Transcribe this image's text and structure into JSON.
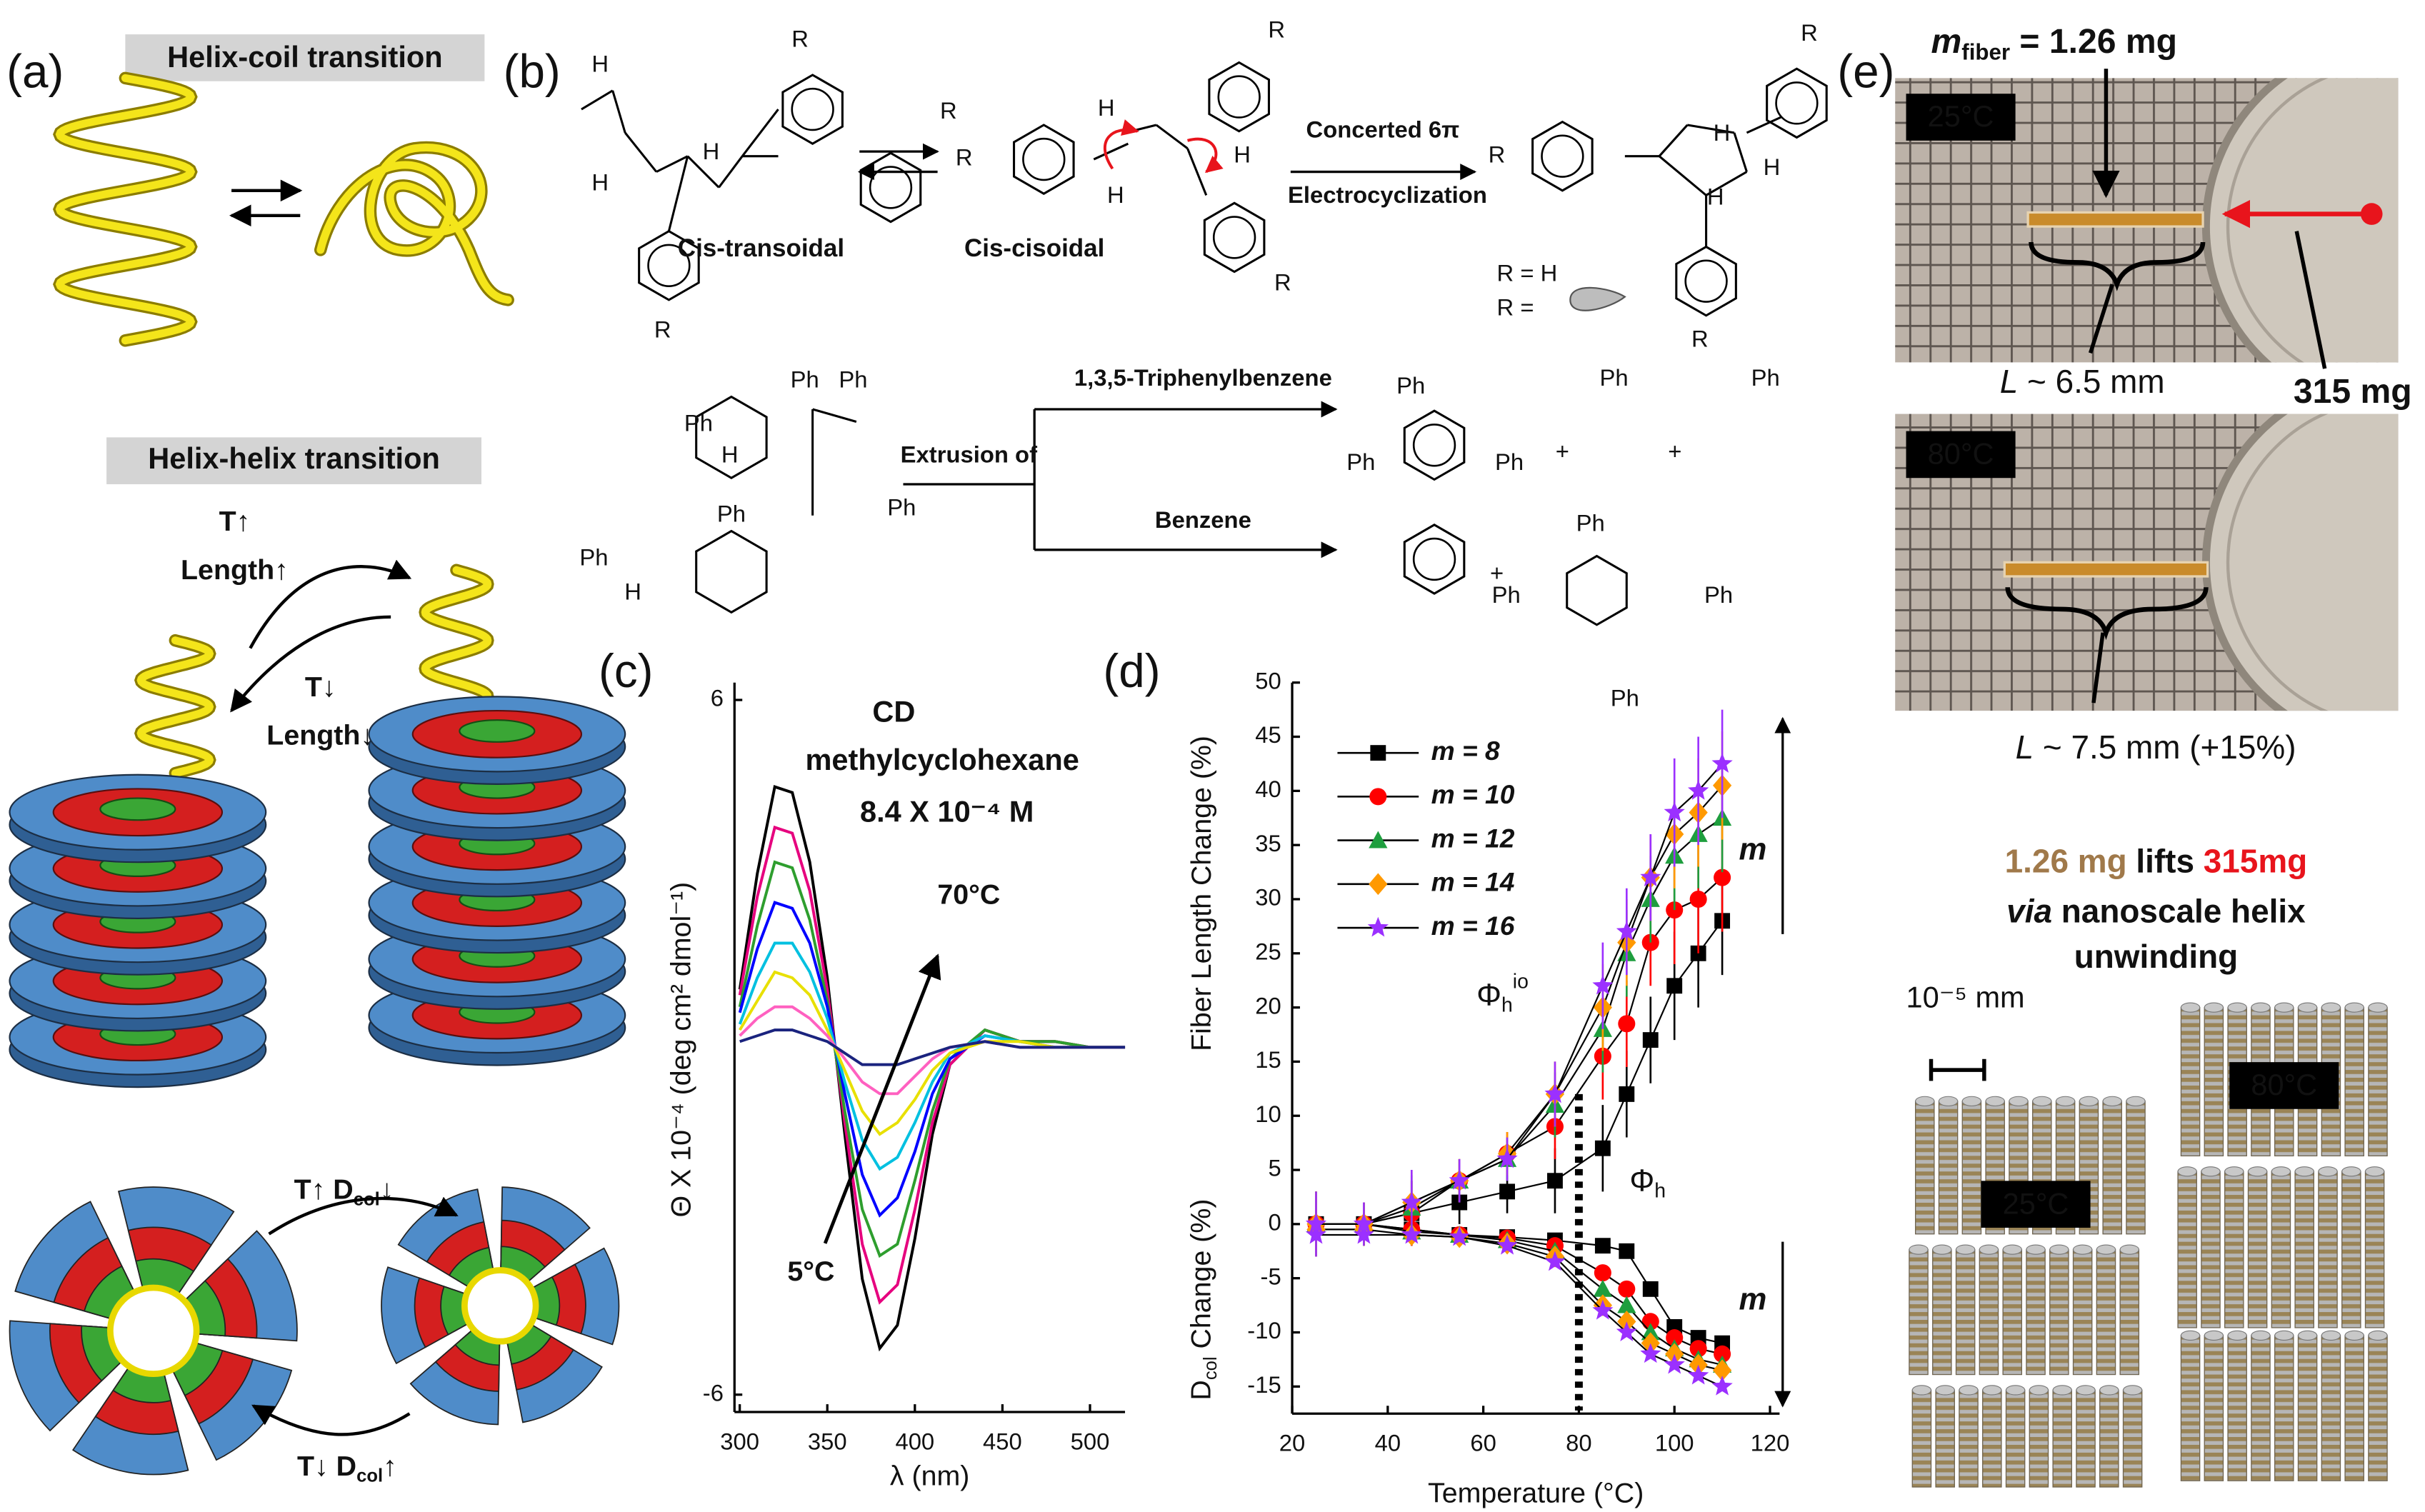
{
  "panel_a": {
    "label": "(a)",
    "helix_coil": "Helix-coil transition",
    "helix_helix": "Helix-helix transition",
    "t_up": "T↑",
    "length_up": "Length↑",
    "t_down": "T↓",
    "length_down": "Length↓",
    "dcol_down": [
      "T↑ D",
      "col",
      "↓"
    ],
    "dcol_up": [
      "T↓ D",
      "col",
      "↑"
    ]
  },
  "panel_b": {
    "label": "(b)",
    "cis_transoidal": "Cis-transoidal",
    "cis_cisoidal": "Cis-cisoidal",
    "concerted": "Concerted 6π",
    "electrocyclization": "Electrocyclization",
    "r_h": "R = H",
    "r_eq": "R =",
    "triphenylbenzene": "1,3,5-Triphenylbenzene",
    "extrusion": "Extrusion of",
    "benzene": "Benzene",
    "atoms": [
      "H",
      "R",
      "R",
      "H",
      "H",
      "R",
      "R",
      "H",
      "H",
      "H",
      "R",
      "R",
      "R",
      "H",
      "H",
      "H",
      "R",
      "R",
      "Ph",
      "Ph",
      "Ph",
      "H",
      "Ph",
      "Ph",
      "Ph",
      "H",
      "Ph",
      "Ph",
      "Ph",
      "+",
      "Ph",
      "+",
      "Ph",
      "+",
      "Ph",
      "Ph",
      "Ph",
      "Ph"
    ]
  },
  "panel_c": {
    "label": "(c)"
  },
  "panel_d": {
    "label": "(d)"
  },
  "panel_e": {
    "label": "(e)",
    "m_fiber": [
      "m",
      "fiber",
      " = 1.26 mg"
    ],
    "temp_25": "25°C",
    "mass_315": "315 mg",
    "length_25": [
      "L",
      " ~ 6.5 mm"
    ],
    "temp_80": "80°C",
    "length_80": [
      "L",
      " ~ 7.5 mm (+15%)"
    ],
    "caption_1": [
      "1.26 mg",
      " lifts ",
      "315mg"
    ],
    "caption_2": [
      "via",
      " nanoscale helix"
    ],
    "caption_3": "unwinding",
    "scale": "10⁻⁵ mm",
    "model_25": "25°C",
    "model_80": "80°C"
  },
  "chart_data": [
    {
      "type": "line",
      "annotations": [
        "CD",
        "methylcyclohexane",
        "8.4 X 10⁻⁴ M",
        "70°C",
        "5°C"
      ],
      "x_label": "λ (nm)",
      "y_label": "Θ X 10⁻⁴ (deg cm² dmol⁻¹)",
      "x": [
        300,
        310,
        320,
        330,
        340,
        350,
        360,
        370,
        380,
        390,
        400,
        410,
        420,
        440,
        460,
        480,
        500,
        520
      ],
      "series": [
        {
          "color": "#000000",
          "values": [
            1.0,
            3.0,
            4.5,
            4.4,
            3.2,
            1.2,
            -1.5,
            -4.0,
            -5.2,
            -4.8,
            -3.3,
            -1.5,
            -0.3,
            0.3,
            0.1,
            0.1,
            0.0,
            0.0
          ]
        },
        {
          "color": "#e6007e",
          "values": [
            0.9,
            2.6,
            3.8,
            3.7,
            2.7,
            1.0,
            -1.3,
            -3.4,
            -4.4,
            -4.1,
            -2.8,
            -1.3,
            -0.3,
            0.3,
            0.1,
            0.1,
            0.0,
            0.0
          ]
        },
        {
          "color": "#2e9e2e",
          "values": [
            0.7,
            2.1,
            3.2,
            3.1,
            2.2,
            0.8,
            -1.1,
            -2.8,
            -3.6,
            -3.4,
            -2.3,
            -1.1,
            -0.2,
            0.3,
            0.1,
            0.1,
            0.0,
            0.0
          ]
        },
        {
          "color": "#0000ff",
          "values": [
            0.6,
            1.7,
            2.5,
            2.4,
            1.8,
            0.7,
            -0.8,
            -2.2,
            -2.9,
            -2.6,
            -1.8,
            -0.8,
            -0.2,
            0.2,
            0.1,
            0.0,
            0.0,
            0.0
          ]
        },
        {
          "color": "#00c0e0",
          "values": [
            0.4,
            1.2,
            1.8,
            1.8,
            1.3,
            0.5,
            -0.6,
            -1.6,
            -2.1,
            -1.9,
            -1.3,
            -0.6,
            -0.1,
            0.2,
            0.1,
            0.0,
            0.0,
            0.0
          ]
        },
        {
          "color": "#e8e000",
          "values": [
            0.3,
            0.8,
            1.3,
            1.2,
            0.9,
            0.3,
            -0.4,
            -1.1,
            -1.5,
            -1.3,
            -0.9,
            -0.4,
            -0.1,
            0.1,
            0.1,
            0.0,
            0.0,
            0.0
          ]
        },
        {
          "color": "#ff60c0",
          "values": [
            0.2,
            0.5,
            0.7,
            0.7,
            0.5,
            0.2,
            -0.2,
            -0.6,
            -0.8,
            -0.8,
            -0.5,
            -0.2,
            0.0,
            0.1,
            0.0,
            0.0,
            0.0,
            0.0
          ]
        },
        {
          "color": "#1a237e",
          "values": [
            0.1,
            0.2,
            0.3,
            0.3,
            0.2,
            0.1,
            -0.1,
            -0.3,
            -0.3,
            -0.3,
            -0.2,
            -0.1,
            0.0,
            0.1,
            0.0,
            0.0,
            0.0,
            0.0
          ]
        }
      ],
      "xlim": [
        297,
        520
      ],
      "ylim": [
        -6.3,
        6.3
      ],
      "xticks": [
        300,
        350,
        400,
        450,
        500
      ],
      "yticks": [
        6,
        -6
      ]
    },
    {
      "type": "scatter",
      "x_label": "Temperature (°C)",
      "y_label": "Fiber Length Change (%)",
      "y_label_2": [
        "D",
        "col",
        " Change (%)"
      ],
      "annotations": {
        "phi_io": [
          "Φ",
          "h",
          "io"
        ],
        "phi": [
          "Φ",
          "h"
        ],
        "m_up": "m",
        "m_down": "m"
      },
      "vline": 80,
      "legend": "upper left",
      "x": [
        25,
        35,
        45,
        55,
        65,
        75,
        85,
        90,
        95,
        100,
        105,
        110
      ],
      "series": [
        {
          "name": "m = 8",
          "color": "#000000",
          "marker": "square",
          "values": [
            0,
            0,
            1,
            2,
            3,
            4,
            7,
            12,
            17,
            22,
            25,
            28
          ],
          "errors": [
            3,
            2,
            3,
            2,
            2,
            3,
            4,
            4,
            4,
            5,
            5,
            5
          ],
          "dcol_values": [
            0,
            0,
            -0.5,
            -1,
            -1.2,
            -1.5,
            -2,
            -2.5,
            -6,
            -9.5,
            -10.5,
            -11
          ]
        },
        {
          "name": "m = 10",
          "color": "#ff0000",
          "marker": "circle",
          "values": [
            0,
            0,
            1,
            4,
            6.5,
            9,
            15.5,
            18.5,
            26,
            29,
            30,
            32
          ],
          "errors": [
            3,
            2,
            3,
            2,
            2,
            3,
            4,
            4,
            4,
            5,
            5,
            5
          ],
          "dcol_values": [
            0,
            0,
            -0.5,
            -1,
            -1.3,
            -2,
            -4.5,
            -6,
            -9,
            -10.5,
            -11.5,
            -12
          ]
        },
        {
          "name": "m = 12",
          "color": "#1e9e3e",
          "marker": "triangle",
          "values": [
            0,
            0,
            1.5,
            4,
            6,
            11,
            18,
            25,
            30,
            34,
            36,
            37.5
          ],
          "errors": [
            3,
            2,
            3,
            2,
            2,
            3,
            4,
            4,
            4,
            5,
            5,
            5
          ],
          "dcol_values": [
            0,
            0,
            -0.7,
            -1,
            -1.5,
            -2.5,
            -6,
            -7.5,
            -10,
            -11.5,
            -12.5,
            -13
          ]
        },
        {
          "name": "m = 14",
          "color": "#ff9900",
          "marker": "diamond",
          "values": [
            0,
            0,
            2,
            4,
            6.5,
            12,
            20,
            26,
            32,
            36,
            38,
            40.5
          ],
          "errors": [
            3,
            2,
            3,
            2,
            2,
            3,
            4,
            4,
            4,
            5,
            5,
            5
          ],
          "dcol_values": [
            -0.5,
            -0.5,
            -1,
            -1.2,
            -1.8,
            -3,
            -7.5,
            -9,
            -11,
            -12,
            -13,
            -13.5
          ]
        },
        {
          "name": "m = 16",
          "color": "#9b30ff",
          "marker": "star",
          "values": [
            0,
            0,
            2,
            4,
            6,
            12,
            22,
            27,
            32,
            38,
            40,
            42.5
          ],
          "errors": [
            3,
            2,
            3,
            2,
            2,
            3,
            4,
            4,
            4,
            5,
            5,
            5
          ],
          "dcol_values": [
            -1,
            -1,
            -1,
            -1.2,
            -2,
            -3.5,
            -8,
            -10,
            -12,
            -13,
            -14,
            -15
          ]
        }
      ],
      "xlim": [
        20,
        122
      ],
      "ylim": [
        -17.5,
        50
      ],
      "xticks": [
        20,
        40,
        60,
        80,
        100,
        120
      ],
      "yticks": [
        -15,
        -10,
        -5,
        0,
        5,
        10,
        15,
        20,
        25,
        30,
        35,
        40,
        45,
        50
      ]
    }
  ]
}
